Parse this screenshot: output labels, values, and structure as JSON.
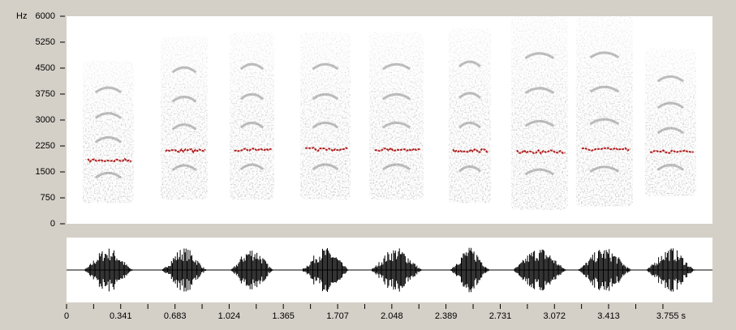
{
  "chart_data": {
    "type": "spectrogram",
    "y_label": "Hz",
    "ylim": [
      0,
      6000
    ],
    "yticks": [
      0,
      750,
      1500,
      2250,
      3000,
      3750,
      4500,
      5250,
      6000
    ],
    "xlim": [
      0,
      4.067
    ],
    "xticks": [
      0,
      0.341,
      0.683,
      1.024,
      1.365,
      1.707,
      2.048,
      2.389,
      2.731,
      3.072,
      3.413,
      {
        "value": 3.755,
        "label": "3.755 s"
      }
    ],
    "syllables": [
      {
        "start": 0.102,
        "end": 0.424,
        "bottom": 600,
        "top": 4711
      },
      {
        "start": 0.593,
        "end": 0.889,
        "bottom": 700,
        "top": 5414
      },
      {
        "start": 1.027,
        "end": 1.308,
        "bottom": 700,
        "top": 5531
      },
      {
        "start": 1.471,
        "end": 1.788,
        "bottom": 700,
        "top": 5531
      },
      {
        "start": 1.906,
        "end": 2.248,
        "bottom": 700,
        "top": 5531
      },
      {
        "start": 2.406,
        "end": 2.672,
        "bottom": 600,
        "top": 5650
      },
      {
        "start": 2.799,
        "end": 3.157,
        "bottom": 400,
        "top": 6000
      },
      {
        "start": 3.208,
        "end": 3.566,
        "bottom": 500,
        "top": 6000
      },
      {
        "start": 3.642,
        "end": 3.964,
        "bottom": 800,
        "top": 5063
      }
    ]
  }
}
